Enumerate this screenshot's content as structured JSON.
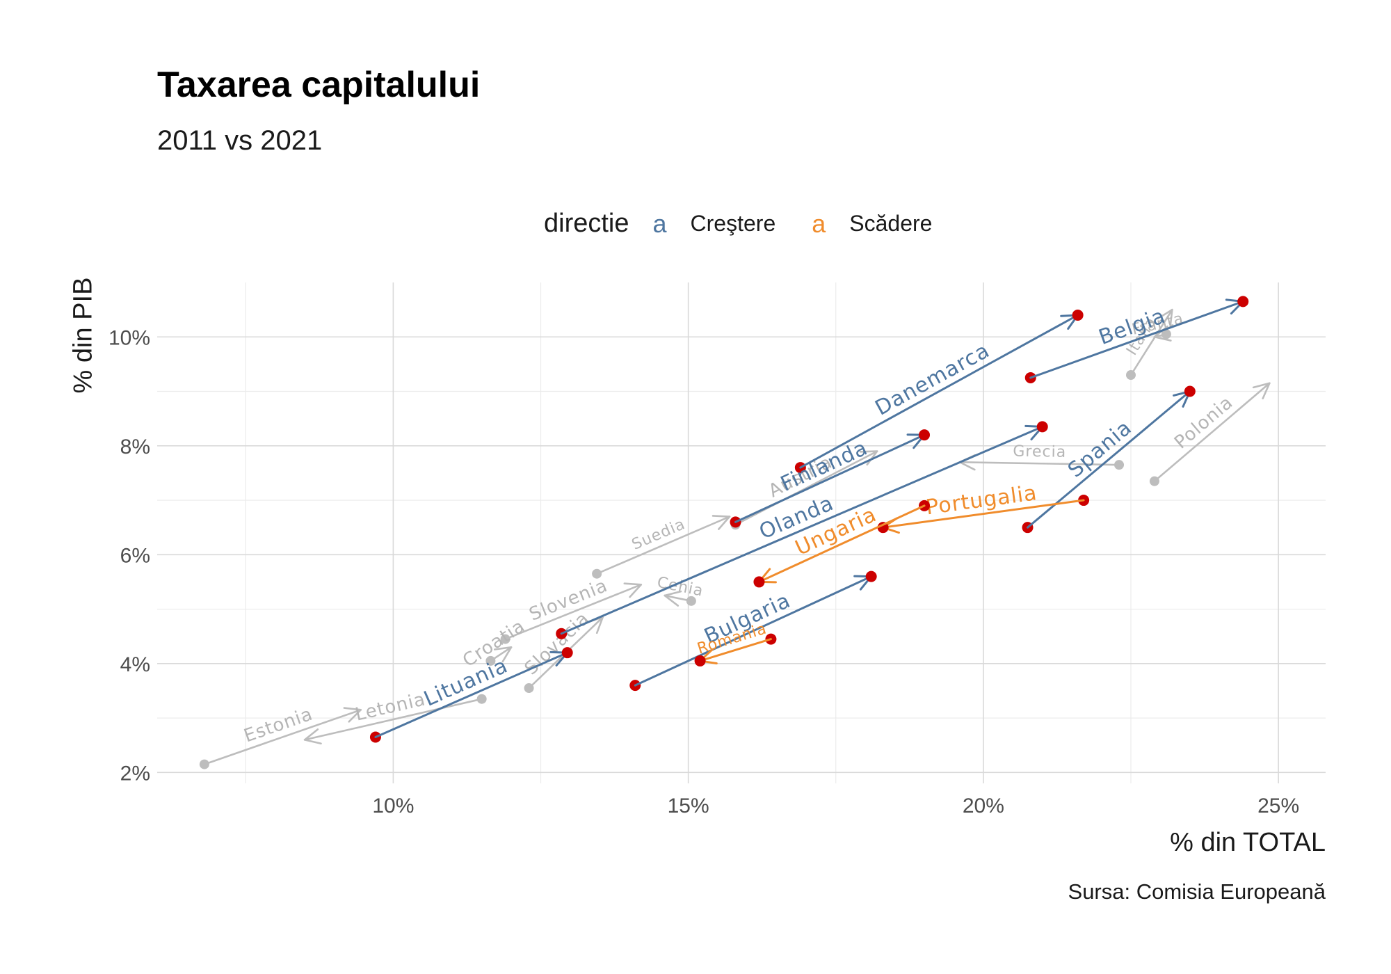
{
  "title": "Taxarea capitalului",
  "subtitle": "2011 vs 2021",
  "caption": "Sursa: Comisia Europeană",
  "legend": {
    "title": "directie",
    "key_glyph": "a",
    "items": [
      {
        "label": "Creştere",
        "color": "#4e76a0"
      },
      {
        "label": "Scădere",
        "color": "#f08c2c"
      }
    ]
  },
  "colors": {
    "highlight_point": "#cc0000",
    "context": "#bdbdbd",
    "grid": "#d9d9d9",
    "axis_text": "#4d4d4d"
  },
  "chart_data": {
    "type": "scatter",
    "title": "Taxarea capitalului",
    "subtitle": "2011 vs 2021",
    "xlabel": "% din TOTAL",
    "ylabel": "% din PIB",
    "xlim": [
      6.0,
      25.8
    ],
    "ylim": [
      1.8,
      11.0
    ],
    "x_ticks": [
      10,
      15,
      20,
      25
    ],
    "x_tick_labels": [
      "10%",
      "15%",
      "20%",
      "25%"
    ],
    "y_ticks": [
      2,
      4,
      6,
      8,
      10
    ],
    "y_tick_labels": [
      "2%",
      "4%",
      "6%",
      "8%",
      "10%"
    ],
    "grid": true,
    "legend_position": "top",
    "series": [
      {
        "label": "Danemarca",
        "direction": "Creştere",
        "highlight": true,
        "x_2011": 16.9,
        "y_2011": 7.6,
        "x_2021": 21.6,
        "y_2021": 10.4
      },
      {
        "label": "Belgia",
        "direction": "Creştere",
        "highlight": true,
        "x_2011": 20.8,
        "y_2011": 9.25,
        "x_2021": 24.4,
        "y_2021": 10.65
      },
      {
        "label": "Finlanda",
        "direction": "Creştere",
        "highlight": true,
        "x_2011": 15.8,
        "y_2011": 6.6,
        "x_2021": 19.0,
        "y_2021": 8.2
      },
      {
        "label": "Olanda",
        "direction": "Creştere",
        "highlight": true,
        "x_2011": 12.85,
        "y_2011": 4.55,
        "x_2021": 21.0,
        "y_2021": 8.35
      },
      {
        "label": "Spania",
        "direction": "Creştere",
        "highlight": true,
        "x_2011": 20.75,
        "y_2011": 6.5,
        "x_2021": 23.5,
        "y_2021": 9.0
      },
      {
        "label": "Lituania",
        "direction": "Creştere",
        "highlight": true,
        "x_2011": 9.7,
        "y_2011": 2.65,
        "x_2021": 12.95,
        "y_2021": 4.2
      },
      {
        "label": "Bulgaria",
        "direction": "Creştere",
        "highlight": true,
        "x_2011": 14.1,
        "y_2011": 3.6,
        "x_2021": 18.1,
        "y_2021": 5.6
      },
      {
        "label": "Portugalia",
        "direction": "Scădere",
        "highlight": true,
        "x_2011": 21.7,
        "y_2011": 7.0,
        "x_2021": 18.3,
        "y_2021": 6.5
      },
      {
        "label": "Ungaria",
        "direction": "Scădere",
        "highlight": true,
        "x_2011": 19.0,
        "y_2011": 6.9,
        "x_2021": 16.2,
        "y_2021": 5.5
      },
      {
        "label": "Romania",
        "direction": "Scădere",
        "highlight": true,
        "x_2011": 16.4,
        "y_2011": 4.45,
        "x_2021": 15.2,
        "y_2021": 4.05
      },
      {
        "label": "Polonia",
        "direction": "Creştere",
        "highlight": false,
        "x_2011": 22.9,
        "y_2011": 7.35,
        "x_2021": 24.85,
        "y_2021": 9.15
      },
      {
        "label": "Grecia",
        "direction": "Scădere",
        "highlight": false,
        "x_2011": 22.3,
        "y_2011": 7.65,
        "x_2021": 19.6,
        "y_2021": 7.7
      },
      {
        "label": "Italia",
        "direction": "Creştere",
        "highlight": false,
        "x_2011": 22.5,
        "y_2011": 9.3,
        "x_2021": 23.2,
        "y_2021": 10.5
      },
      {
        "label": "Franta",
        "direction": "Scădere",
        "highlight": false,
        "x_2011": 23.1,
        "y_2011": 10.05,
        "x_2021": 22.9,
        "y_2021": 10.0
      },
      {
        "label": "Austria",
        "direction": "Creştere",
        "highlight": false,
        "x_2011": 15.8,
        "y_2011": 6.55,
        "x_2021": 18.2,
        "y_2021": 7.9
      },
      {
        "label": "Suedia",
        "direction": "Creştere",
        "highlight": false,
        "x_2011": 13.45,
        "y_2011": 5.65,
        "x_2021": 15.7,
        "y_2021": 6.7
      },
      {
        "label": "Slovenia",
        "direction": "Creştere",
        "highlight": false,
        "x_2011": 11.9,
        "y_2011": 4.45,
        "x_2021": 14.2,
        "y_2021": 5.45
      },
      {
        "label": "Cehia",
        "direction": "Scădere",
        "highlight": false,
        "x_2011": 15.05,
        "y_2011": 5.15,
        "x_2021": 14.6,
        "y_2021": 5.25
      },
      {
        "label": "Slovacia",
        "direction": "Creştere",
        "highlight": false,
        "x_2011": 12.3,
        "y_2011": 3.55,
        "x_2021": 13.55,
        "y_2021": 4.85
      },
      {
        "label": "Croatia",
        "direction": "Creştere",
        "highlight": false,
        "x_2011": 11.65,
        "y_2011": 4.05,
        "x_2021": 12.0,
        "y_2021": 4.3
      },
      {
        "label": "Estonia",
        "direction": "Creştere",
        "highlight": false,
        "x_2011": 6.8,
        "y_2011": 2.15,
        "x_2021": 9.45,
        "y_2021": 3.15
      },
      {
        "label": "Letonia",
        "direction": "Scădere",
        "highlight": false,
        "x_2011": 11.5,
        "y_2011": 3.35,
        "x_2021": 8.5,
        "y_2021": 2.6
      }
    ]
  }
}
